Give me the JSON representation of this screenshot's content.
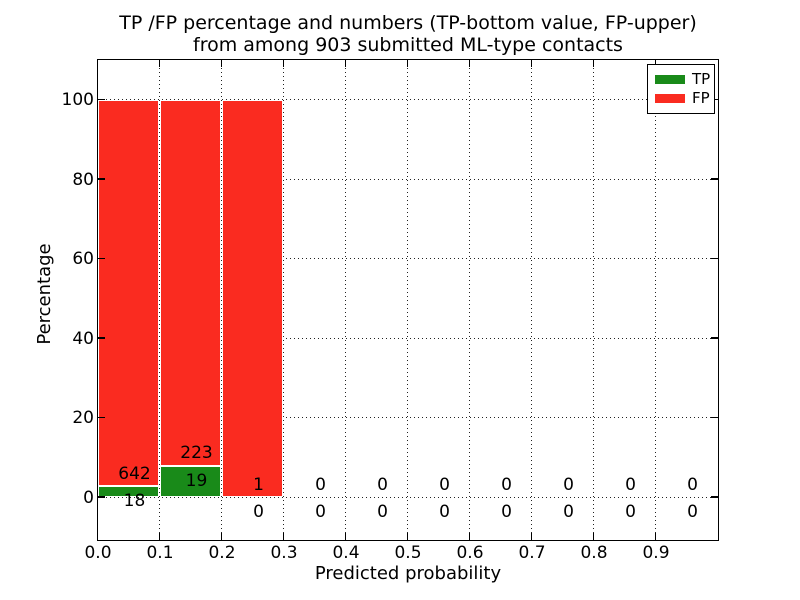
{
  "title": {
    "line1": "TP /FP percentage and numbers (TP-bottom value, FP-upper)",
    "line2": "from among 903 submitted ML-type contacts"
  },
  "axes": {
    "xlabel": "Predicted probability",
    "ylabel": "Percentage"
  },
  "legend": {
    "position": "upper right",
    "items": [
      {
        "label": "TP",
        "color": "#198a19"
      },
      {
        "label": "FP",
        "color": "#fa2b20"
      }
    ]
  },
  "chart_data": {
    "type": "bar",
    "stacked": true,
    "title": "TP /FP percentage and numbers (TP-bottom value, FP-upper) from among 903 submitted ML-type contacts",
    "xlabel": "Predicted probability",
    "ylabel": "Percentage",
    "total_contacts": 903,
    "bin_edges": [
      0.0,
      0.1,
      0.2,
      0.3,
      0.4,
      0.5,
      0.6,
      0.7,
      0.8,
      0.9,
      1.0
    ],
    "x_tick_labels": [
      "0.0",
      "0.1",
      "0.2",
      "0.3",
      "0.4",
      "0.5",
      "0.6",
      "0.7",
      "0.8",
      "0.9"
    ],
    "y_ticks": [
      0,
      20,
      40,
      60,
      80,
      100
    ],
    "xlim": [
      0.0,
      1.0
    ],
    "ylim": [
      -10.7,
      110
    ],
    "grid": true,
    "legend_position": "upper right",
    "series": [
      {
        "name": "TP",
        "color": "#198a19",
        "counts": [
          18,
          19,
          0,
          0,
          0,
          0,
          0,
          0,
          0,
          0
        ],
        "percentages": [
          2.7,
          7.9,
          0,
          0,
          0,
          0,
          0,
          0,
          0,
          0
        ]
      },
      {
        "name": "FP",
        "color": "#fa2b20",
        "counts": [
          642,
          223,
          1,
          0,
          0,
          0,
          0,
          0,
          0,
          0
        ],
        "percentages": [
          97.3,
          92.1,
          100,
          0,
          0,
          0,
          0,
          0,
          0,
          0
        ]
      }
    ]
  }
}
